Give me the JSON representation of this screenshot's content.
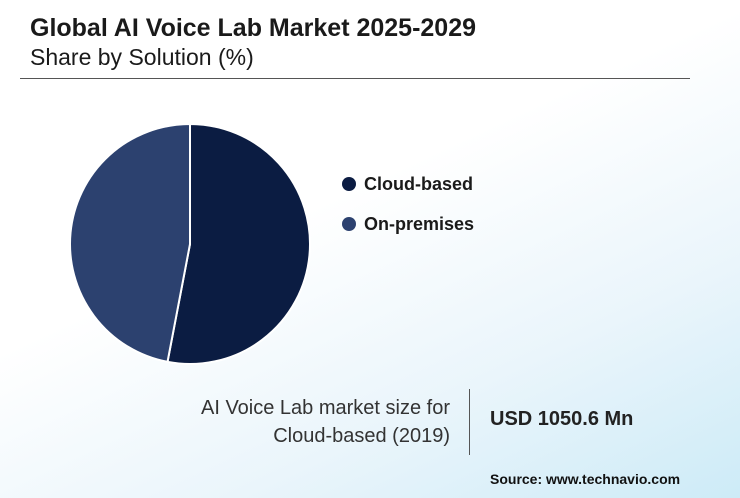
{
  "header": {
    "title": "Global AI Voice Lab Market 2025-2029",
    "subtitle": "Share by Solution (%)"
  },
  "chart_data": {
    "type": "pie",
    "title": "Global AI Voice Lab Market 2025-2029",
    "subtitle": "Share by Solution (%)",
    "categories": [
      "Cloud-based",
      "On-premises"
    ],
    "values": [
      53,
      47
    ],
    "colors": [
      "#0b1c42",
      "#2c416f"
    ]
  },
  "stat": {
    "label_line1": "AI Voice Lab market size for",
    "label_line2": "Cloud-based (2019)",
    "value": "USD 1050.6 Mn"
  },
  "source": "Source: www.technavio.com"
}
